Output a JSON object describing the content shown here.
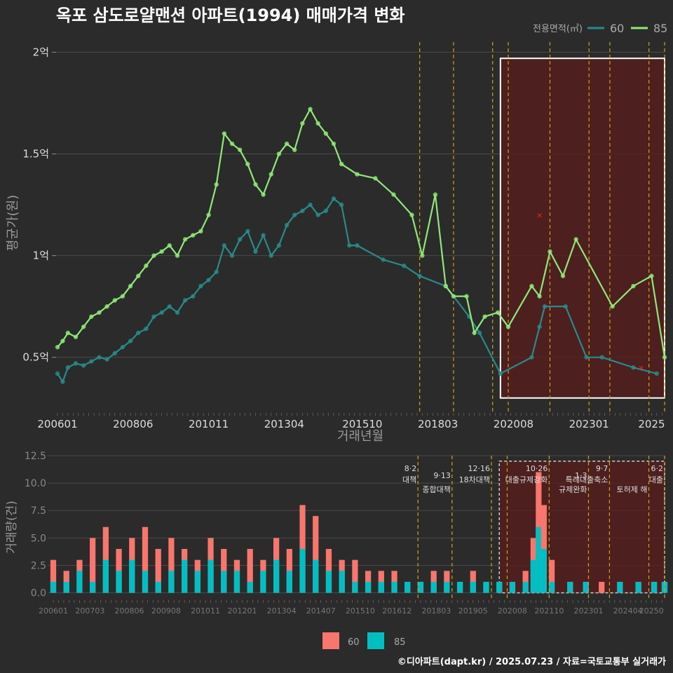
{
  "title": "옥포 삼도로얄맨션 아파트(1994) 매매가격 변화",
  "footer": "©디아파트(dapt.kr) / 2025.07.23 / 자료=국토교통부 실거래가",
  "colors": {
    "background": "#2b2b2b",
    "grid": "#4a4a4a",
    "series_60_line": "#2a8a8a",
    "series_85_line": "#90e878",
    "bar_60": "#f8766d",
    "bar_85": "#00bfc4",
    "policy_line": "#d4a017",
    "highlight_fill": "#5a1c1c",
    "highlight_border": "#ffffff"
  },
  "chart_data": [
    {
      "type": "line",
      "title": "옥포 삼도로얄맨션 아파트(1994) 매매가격 변화",
      "xlabel": "거래년월",
      "ylabel": "평균가(원)",
      "ylim": [
        0.23,
        2.05
      ],
      "y_unit": "억",
      "x_range": [
        "2006-01",
        "2025-06"
      ],
      "x_ticks": [
        "200601",
        "200806",
        "201011",
        "201304",
        "201510",
        "201803",
        "202008",
        "202301",
        "2025"
      ],
      "y_ticks": [
        "0.5억",
        "1억",
        "1.5억",
        "2억"
      ],
      "y_tick_values": [
        0.5,
        1.0,
        1.5,
        2.0
      ],
      "legend_title": "전용면적(㎡)",
      "legend_position": "top-right",
      "grid": true,
      "series": [
        {
          "name": "60",
          "color": "#2a8a8a",
          "points": [
            [
              "2006-01",
              0.42
            ],
            [
              "2006-03",
              0.38
            ],
            [
              "2006-05",
              0.45
            ],
            [
              "2006-08",
              0.47
            ],
            [
              "2006-11",
              0.46
            ],
            [
              "2007-02",
              0.48
            ],
            [
              "2007-05",
              0.5
            ],
            [
              "2007-08",
              0.49
            ],
            [
              "2007-11",
              0.52
            ],
            [
              "2008-02",
              0.55
            ],
            [
              "2008-05",
              0.58
            ],
            [
              "2008-08",
              0.62
            ],
            [
              "2008-11",
              0.64
            ],
            [
              "2009-02",
              0.7
            ],
            [
              "2009-05",
              0.72
            ],
            [
              "2009-08",
              0.75
            ],
            [
              "2009-11",
              0.72
            ],
            [
              "2010-02",
              0.78
            ],
            [
              "2010-05",
              0.8
            ],
            [
              "2010-08",
              0.85
            ],
            [
              "2010-11",
              0.88
            ],
            [
              "2011-02",
              0.92
            ],
            [
              "2011-05",
              1.05
            ],
            [
              "2011-08",
              1.0
            ],
            [
              "2011-11",
              1.08
            ],
            [
              "2012-02",
              1.12
            ],
            [
              "2012-05",
              1.02
            ],
            [
              "2012-08",
              1.1
            ],
            [
              "2012-11",
              1.0
            ],
            [
              "2013-02",
              1.05
            ],
            [
              "2013-05",
              1.15
            ],
            [
              "2013-08",
              1.2
            ],
            [
              "2013-11",
              1.22
            ],
            [
              "2014-02",
              1.25
            ],
            [
              "2014-05",
              1.2
            ],
            [
              "2014-08",
              1.22
            ],
            [
              "2014-11",
              1.28
            ],
            [
              "2015-02",
              1.25
            ],
            [
              "2015-05",
              1.05
            ],
            [
              "2015-08",
              1.05
            ],
            [
              "2016-06",
              0.98
            ],
            [
              "2017-02",
              0.95
            ],
            [
              "2017-08",
              0.9
            ],
            [
              "2018-06",
              0.85
            ],
            [
              "2019-03",
              0.7
            ],
            [
              "2019-07",
              0.62
            ],
            [
              "2020-03",
              0.42
            ],
            [
              "2021-03",
              0.5
            ],
            [
              "2021-06",
              0.65
            ],
            [
              "2021-08",
              0.75
            ],
            [
              "2022-04",
              0.75
            ],
            [
              "2022-12",
              0.5
            ],
            [
              "2023-06",
              0.5
            ],
            [
              "2024-06",
              0.45
            ],
            [
              "2025-03",
              0.42
            ]
          ]
        },
        {
          "name": "85",
          "color": "#90e878",
          "points": [
            [
              "2006-01",
              0.55
            ],
            [
              "2006-03",
              0.58
            ],
            [
              "2006-05",
              0.62
            ],
            [
              "2006-08",
              0.6
            ],
            [
              "2006-11",
              0.65
            ],
            [
              "2007-02",
              0.7
            ],
            [
              "2007-05",
              0.72
            ],
            [
              "2007-08",
              0.75
            ],
            [
              "2007-11",
              0.78
            ],
            [
              "2008-02",
              0.8
            ],
            [
              "2008-05",
              0.85
            ],
            [
              "2008-08",
              0.9
            ],
            [
              "2008-11",
              0.95
            ],
            [
              "2009-02",
              1.0
            ],
            [
              "2009-05",
              1.02
            ],
            [
              "2009-08",
              1.05
            ],
            [
              "2009-11",
              1.0
            ],
            [
              "2010-02",
              1.08
            ],
            [
              "2010-05",
              1.1
            ],
            [
              "2010-08",
              1.12
            ],
            [
              "2010-11",
              1.2
            ],
            [
              "2011-02",
              1.35
            ],
            [
              "2011-05",
              1.6
            ],
            [
              "2011-08",
              1.55
            ],
            [
              "2011-11",
              1.52
            ],
            [
              "2012-02",
              1.45
            ],
            [
              "2012-05",
              1.35
            ],
            [
              "2012-08",
              1.3
            ],
            [
              "2012-11",
              1.4
            ],
            [
              "2013-02",
              1.5
            ],
            [
              "2013-05",
              1.55
            ],
            [
              "2013-08",
              1.52
            ],
            [
              "2013-11",
              1.65
            ],
            [
              "2014-02",
              1.72
            ],
            [
              "2014-05",
              1.65
            ],
            [
              "2014-08",
              1.6
            ],
            [
              "2014-11",
              1.55
            ],
            [
              "2015-02",
              1.45
            ],
            [
              "2015-08",
              1.4
            ],
            [
              "2016-03",
              1.38
            ],
            [
              "2016-10",
              1.3
            ],
            [
              "2017-05",
              1.2
            ],
            [
              "2017-09",
              1.0
            ],
            [
              "2018-02",
              1.3
            ],
            [
              "2018-06",
              0.85
            ],
            [
              "2018-09",
              0.8
            ],
            [
              "2019-02",
              0.8
            ],
            [
              "2019-05",
              0.62
            ],
            [
              "2019-09",
              0.7
            ],
            [
              "2020-02",
              0.72
            ],
            [
              "2020-06",
              0.65
            ],
            [
              "2021-03",
              0.85
            ],
            [
              "2021-06",
              0.8
            ],
            [
              "2021-10",
              1.02
            ],
            [
              "2022-03",
              0.9
            ],
            [
              "2022-08",
              1.08
            ],
            [
              "2023-10",
              0.75
            ],
            [
              "2024-06",
              0.85
            ],
            [
              "2025-01",
              0.9
            ],
            [
              "2025-06",
              0.5
            ]
          ]
        }
      ],
      "annotations": {
        "highlight_box": {
          "x_start": "2020-03",
          "x_end": "2025-06",
          "y_start": 0.3,
          "y_end": 1.97
        },
        "red_marks": [
          [
            "2021-06",
            1.2
          ],
          [
            "2024-09",
            0.45
          ]
        ]
      }
    },
    {
      "type": "bar",
      "xlabel": "",
      "ylabel": "거래량(건)",
      "ylim": [
        -0.6,
        12.5
      ],
      "x_ticks": [
        "200601",
        "200703",
        "200806",
        "200908",
        "201011",
        "201201",
        "201304",
        "201407",
        "201510",
        "201612",
        "201803",
        "201905",
        "202008",
        "202110",
        "202301",
        "202404",
        "20250"
      ],
      "y_ticks": [
        "0.0",
        "2.5",
        "5.0",
        "7.5",
        "10.0",
        "12.5"
      ],
      "y_tick_values": [
        0,
        2.5,
        5,
        7.5,
        10,
        12.5
      ],
      "legend_position": "bottom",
      "grid": true,
      "series": [
        {
          "name": "60",
          "color": "#f8766d"
        },
        {
          "name": "85",
          "color": "#00bfc4"
        }
      ],
      "bars": [
        {
          "month": "2006-01",
          "v60": 3,
          "v85": 1
        },
        {
          "month": "2006-06",
          "v60": 2,
          "v85": 1
        },
        {
          "month": "2006-11",
          "v60": 3,
          "v85": 2
        },
        {
          "month": "2007-04",
          "v60": 5,
          "v85": 1
        },
        {
          "month": "2007-09",
          "v60": 6,
          "v85": 3
        },
        {
          "month": "2008-02",
          "v60": 4,
          "v85": 2
        },
        {
          "month": "2008-07",
          "v60": 5,
          "v85": 3
        },
        {
          "month": "2008-12",
          "v60": 6,
          "v85": 2
        },
        {
          "month": "2009-05",
          "v60": 4,
          "v85": 1
        },
        {
          "month": "2009-10",
          "v60": 5,
          "v85": 2
        },
        {
          "month": "2010-03",
          "v60": 4,
          "v85": 3
        },
        {
          "month": "2010-08",
          "v60": 3,
          "v85": 2
        },
        {
          "month": "2011-01",
          "v60": 5,
          "v85": 3
        },
        {
          "month": "2011-06",
          "v60": 4,
          "v85": 2
        },
        {
          "month": "2011-11",
          "v60": 3,
          "v85": 2
        },
        {
          "month": "2012-04",
          "v60": 4,
          "v85": 1
        },
        {
          "month": "2012-09",
          "v60": 3,
          "v85": 2
        },
        {
          "month": "2013-02",
          "v60": 5,
          "v85": 3
        },
        {
          "month": "2013-07",
          "v60": 4,
          "v85": 2
        },
        {
          "month": "2013-12",
          "v60": 8,
          "v85": 4
        },
        {
          "month": "2014-05",
          "v60": 7,
          "v85": 3
        },
        {
          "month": "2014-10",
          "v60": 4,
          "v85": 2
        },
        {
          "month": "2015-03",
          "v60": 3,
          "v85": 2
        },
        {
          "month": "2015-08",
          "v60": 3,
          "v85": 1
        },
        {
          "month": "2016-01",
          "v60": 2,
          "v85": 1
        },
        {
          "month": "2016-06",
          "v60": 2,
          "v85": 1
        },
        {
          "month": "2016-11",
          "v60": 2,
          "v85": 1
        },
        {
          "month": "2017-04",
          "v60": 1,
          "v85": 1
        },
        {
          "month": "2017-09",
          "v60": 1,
          "v85": 1
        },
        {
          "month": "2018-02",
          "v60": 2,
          "v85": 1
        },
        {
          "month": "2018-07",
          "v60": 2,
          "v85": 1
        },
        {
          "month": "2018-12",
          "v60": 1,
          "v85": 1
        },
        {
          "month": "2019-05",
          "v60": 2,
          "v85": 1
        },
        {
          "month": "2019-10",
          "v60": 1,
          "v85": 1
        },
        {
          "month": "2020-03",
          "v60": 1,
          "v85": 1
        },
        {
          "month": "2020-08",
          "v60": 1,
          "v85": 1
        },
        {
          "month": "2021-01",
          "v60": 2,
          "v85": 1
        },
        {
          "month": "2021-04",
          "v60": 5,
          "v85": 3
        },
        {
          "month": "2021-06",
          "v60": 11,
          "v85": 6
        },
        {
          "month": "2021-08",
          "v60": 8,
          "v85": 4
        },
        {
          "month": "2021-11",
          "v60": 3,
          "v85": 1
        },
        {
          "month": "2022-06",
          "v60": 1,
          "v85": 1
        },
        {
          "month": "2022-12",
          "v60": 1,
          "v85": 1
        },
        {
          "month": "2023-06",
          "v60": 1,
          "v85": 0
        },
        {
          "month": "2024-01",
          "v60": 1,
          "v85": 1
        },
        {
          "month": "2024-08",
          "v60": 1,
          "v85": 1
        },
        {
          "month": "2025-02",
          "v60": 1,
          "v85": 1
        },
        {
          "month": "2025-06",
          "v60": 1,
          "v85": 1
        }
      ],
      "policy_lines": [
        {
          "month": "2017-08",
          "date": "8·2",
          "label": "대책"
        },
        {
          "month": "2018-09",
          "date": "9·13",
          "label": "종합대책"
        },
        {
          "month": "2019-12",
          "date": "12·16",
          "label": "18차대책"
        },
        {
          "month": "2020-06",
          "date": "",
          "label": ""
        },
        {
          "month": "2021-10",
          "date": "10·26",
          "label": "대출규제강화"
        },
        {
          "month": "2023-01",
          "date": "1·3",
          "label": "규제완화"
        },
        {
          "month": "2023-09",
          "date": "9·7",
          "label": "특례대출축소"
        },
        {
          "month": "2024-12",
          "date": "",
          "label": "토허제 해"
        },
        {
          "month": "2025-06",
          "date": "6·2",
          "label": "대출"
        }
      ]
    }
  ]
}
